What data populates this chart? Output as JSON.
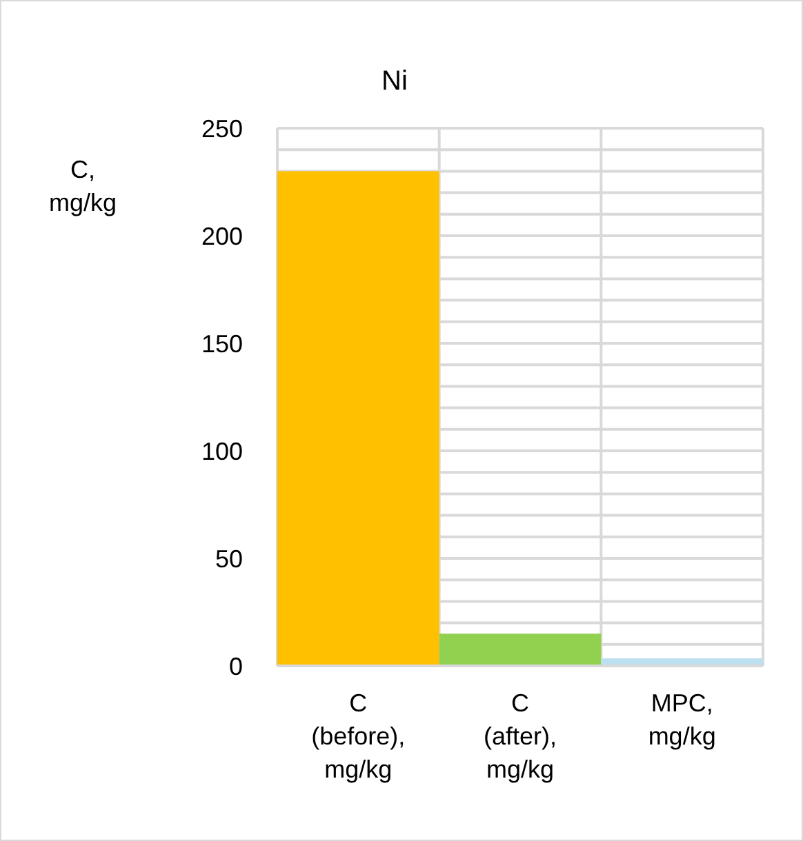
{
  "chart_data": {
    "type": "bar",
    "title": "Ni",
    "ylabel": "C, mg/kg",
    "categories": [
      "C (before), mg/kg",
      "C (after), mg/kg",
      "MPC, mg/kg"
    ],
    "values": [
      230,
      15,
      3.5
    ],
    "colors": [
      "#ffc000",
      "#92d050",
      "#bde0f0"
    ],
    "ylim": [
      0,
      250
    ],
    "yticks": [
      0,
      {
        "value": 10,
        "label": null
      },
      {
        "value": 20,
        "label": null
      },
      {
        "value": 30,
        "label": null
      },
      {
        "value": 40,
        "label": null
      },
      50,
      {
        "value": 60,
        "label": null
      },
      {
        "value": 70,
        "label": null
      },
      {
        "value": 80,
        "label": null
      },
      {
        "value": 90,
        "label": null
      },
      100,
      {
        "value": 110,
        "label": null
      },
      {
        "value": 120,
        "label": null
      },
      {
        "value": 130,
        "label": null
      },
      {
        "value": 140,
        "label": null
      },
      150,
      {
        "value": 160,
        "label": null
      },
      {
        "value": 170,
        "label": null
      },
      {
        "value": 180,
        "label": null
      },
      {
        "value": 190,
        "label": null
      },
      200,
      {
        "value": 210,
        "label": null
      },
      {
        "value": 220,
        "label": null
      },
      {
        "value": 230,
        "label": null
      },
      {
        "value": 240,
        "label": null
      },
      250
    ],
    "grid": true
  }
}
